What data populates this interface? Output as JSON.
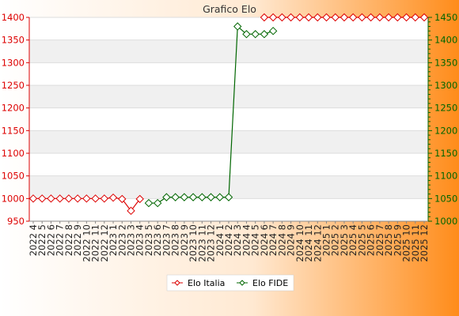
{
  "chart_data": {
    "type": "line",
    "title": "Grafico Elo",
    "categories": [
      "2022 4",
      "2022 5",
      "2022 6",
      "2022 7",
      "2022 8",
      "2022 9",
      "2022 10",
      "2022 11",
      "2022 12",
      "2023 1",
      "2023 2",
      "2023 3",
      "2023 4",
      "2023 5",
      "2023 6",
      "2023 7",
      "2023 8",
      "2023 9",
      "2023 10",
      "2023 11",
      "2023 12",
      "2024 1",
      "2024 2",
      "2024 3",
      "2024 4",
      "2024 5",
      "2024 6",
      "2024 7",
      "2024 8",
      "2024 9",
      "2024 10",
      "2024 11",
      "2024 12",
      "2025 1",
      "2025 2",
      "2025 3",
      "2025 4",
      "2025 5",
      "2025 6",
      "2025 7",
      "2025 8",
      "2025 9",
      "2025 10",
      "2025 11",
      "2025 12"
    ],
    "series": [
      {
        "name": "Elo Italia",
        "axis": "left",
        "color": "#dd0000",
        "values": [
          1000,
          1000,
          1000,
          1000,
          1000,
          1000,
          1000,
          1000,
          1000,
          1002,
          999,
          973,
          999,
          null,
          null,
          null,
          null,
          null,
          null,
          null,
          null,
          null,
          null,
          null,
          null,
          null,
          1400,
          1400,
          1400,
          1400,
          1400,
          1400,
          1400,
          1400,
          1400,
          1400,
          1400,
          1400,
          1400,
          1400,
          1400,
          1400,
          1400,
          1400,
          1400
        ]
      },
      {
        "name": "Elo FIDE",
        "axis": "right",
        "color": "#006600",
        "values": [
          null,
          null,
          null,
          null,
          null,
          null,
          null,
          null,
          null,
          null,
          null,
          null,
          null,
          1040,
          1040,
          1053,
          1053,
          1053,
          1053,
          1053,
          1053,
          1053,
          1053,
          1430,
          1413,
          1413,
          1413,
          1420,
          null,
          null,
          null,
          null,
          null,
          null,
          null,
          null,
          null,
          null,
          null,
          null,
          null,
          null,
          null,
          null,
          null
        ]
      }
    ],
    "y_left": {
      "min": 950,
      "max": 1400,
      "step": 50,
      "ticks": [
        "950",
        "1000",
        "1050",
        "1100",
        "1150",
        "1200",
        "1250",
        "1300",
        "1350",
        "1400"
      ],
      "color": "#dd0000"
    },
    "y_right": {
      "min": 1000,
      "max": 1450,
      "step": 50,
      "ticks": [
        "1000",
        "1050",
        "1100",
        "1150",
        "1200",
        "1250",
        "1300",
        "1350",
        "1400",
        "1450"
      ],
      "color": "#006600"
    },
    "grid": true,
    "legend_position": "bottom"
  },
  "ui": {
    "background_gradient": [
      "#ffffff",
      "#ff8c1a"
    ]
  }
}
